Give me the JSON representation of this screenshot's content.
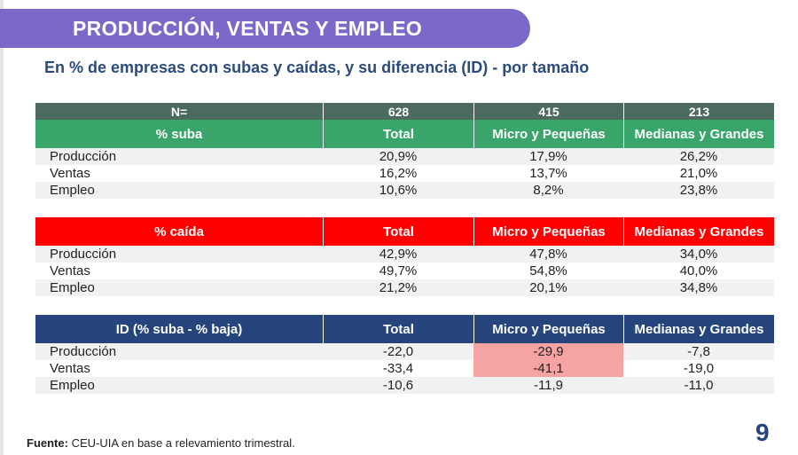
{
  "title": "PRODUCCIÓN, VENTAS Y EMPLEO",
  "subtitle": "En % de empresas con subas y caídas, y su diferencia (ID) - por tamaño",
  "n_row": {
    "label": "N=",
    "total": "628",
    "micro": "415",
    "medianas": "213"
  },
  "columns": {
    "total": "Total",
    "micro": "Micro y Pequeñas",
    "medianas": "Medianas y Grandes"
  },
  "tables": [
    {
      "header": "% suba",
      "rows": [
        {
          "label": "Producción",
          "total": "20,9%",
          "micro": "17,9%",
          "medianas": "26,2%"
        },
        {
          "label": "Ventas",
          "total": "16,2%",
          "micro": "13,7%",
          "medianas": "21,0%"
        },
        {
          "label": "Empleo",
          "total": "10,6%",
          "micro": "8,2%",
          "medianas": "23,8%"
        }
      ]
    },
    {
      "header": "% caída",
      "rows": [
        {
          "label": "Producción",
          "total": "42,9%",
          "micro": "47,8%",
          "medianas": "34,0%"
        },
        {
          "label": "Ventas",
          "total": "49,7%",
          "micro": "54,8%",
          "medianas": "40,0%"
        },
        {
          "label": "Empleo",
          "total": "21,2%",
          "micro": "20,1%",
          "medianas": "34,8%"
        }
      ]
    },
    {
      "header": "ID (% suba - % baja)",
      "rows": [
        {
          "label": "Producción",
          "total": "-22,0",
          "micro": "-29,9",
          "medianas": "-7,8"
        },
        {
          "label": "Ventas",
          "total": "-33,4",
          "micro": "-41,1",
          "medianas": "-19,0"
        },
        {
          "label": "Empleo",
          "total": "-10,6",
          "micro": "-11,9",
          "medianas": "-11,0"
        }
      ]
    }
  ],
  "footer": {
    "label": "Fuente:",
    "text": " CEU-UIA en base a relevamiento trimestral."
  },
  "page_number": "9",
  "colors": {
    "banner": "#7b68c8",
    "suba_header": "#3aa56b",
    "caida_header": "#ff0000",
    "id_header": "#27457d",
    "n_row": "#4d6a5e",
    "highlight": "#f5a3a3"
  }
}
